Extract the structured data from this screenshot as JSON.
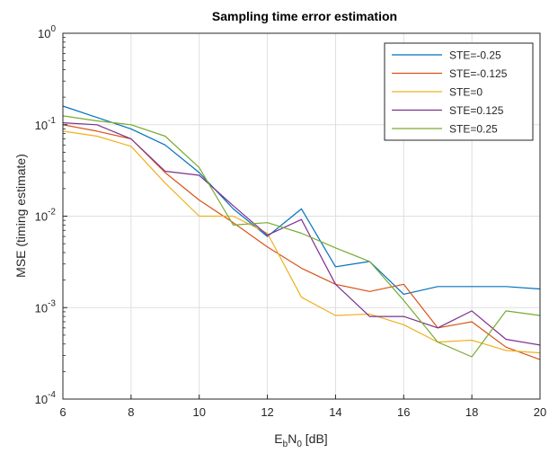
{
  "chart_data": {
    "type": "line",
    "title": "Sampling time error estimation",
    "xlabel": {
      "main": "E",
      "sub1": "b",
      "mid": "N",
      "sub2": "0",
      "unit": " [dB]"
    },
    "ylabel": "MSE (timing estimate)",
    "xlim": [
      6,
      20
    ],
    "ylim": [
      0.0001,
      1
    ],
    "yscale": "log",
    "grid": true,
    "legend_position": "top-right",
    "x_ticks": [
      "6",
      "8",
      "10",
      "12",
      "14",
      "16",
      "18",
      "20"
    ],
    "y_ticks": [
      {
        "base": "10",
        "exp": "-4"
      },
      {
        "base": "10",
        "exp": "-3"
      },
      {
        "base": "10",
        "exp": "-2"
      },
      {
        "base": "10",
        "exp": "-1"
      },
      {
        "base": "10",
        "exp": "0"
      }
    ],
    "x": [
      6,
      7,
      8,
      9,
      10,
      11,
      12,
      13,
      14,
      15,
      16,
      17,
      18,
      19,
      20
    ],
    "series": [
      {
        "name": "STE=-0.25",
        "color": "#0072bd",
        "values": [
          0.16,
          0.12,
          0.09,
          0.06,
          0.03,
          0.012,
          0.006,
          0.012,
          0.0028,
          0.0032,
          0.0014,
          0.0017,
          0.0017,
          0.0017,
          0.0016
        ]
      },
      {
        "name": "STE=-0.125",
        "color": "#d95319",
        "values": [
          0.1,
          0.085,
          0.07,
          0.03,
          0.015,
          0.0085,
          0.0046,
          0.0027,
          0.0018,
          0.0015,
          0.0018,
          0.0006,
          0.0007,
          0.00037,
          0.00027
        ]
      },
      {
        "name": "STE=0",
        "color": "#edb120",
        "values": [
          0.085,
          0.075,
          0.058,
          0.023,
          0.01,
          0.01,
          0.0065,
          0.0013,
          0.00082,
          0.00085,
          0.00065,
          0.00042,
          0.00044,
          0.00034,
          0.00032
        ]
      },
      {
        "name": "STE=0.125",
        "color": "#7e2f8e",
        "values": [
          0.105,
          0.1,
          0.07,
          0.031,
          0.028,
          0.013,
          0.0062,
          0.0092,
          0.0018,
          0.0008,
          0.0008,
          0.0006,
          0.00092,
          0.00045,
          0.00039
        ]
      },
      {
        "name": "STE=0.25",
        "color": "#77ac30",
        "values": [
          0.125,
          0.11,
          0.1,
          0.075,
          0.034,
          0.008,
          0.0085,
          0.0065,
          0.0045,
          0.0032,
          0.0012,
          0.00042,
          0.00029,
          0.00092,
          0.00082
        ]
      }
    ]
  }
}
